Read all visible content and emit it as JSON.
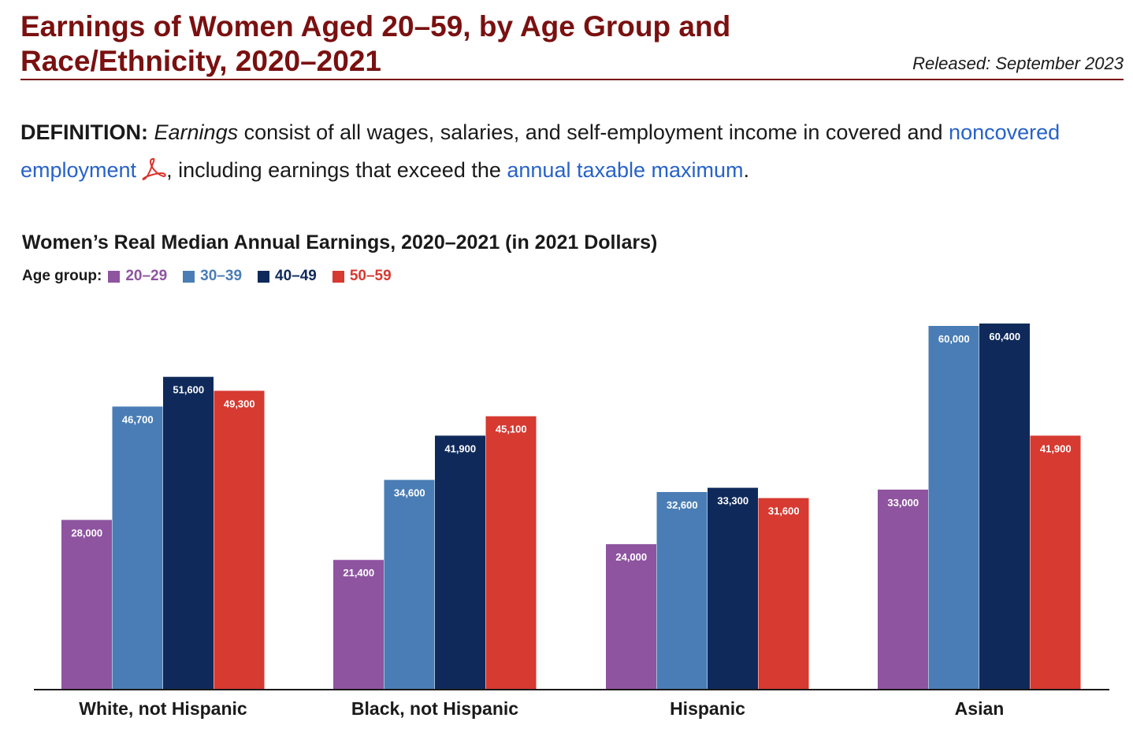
{
  "header": {
    "title": "Earnings of Women Aged 20–59, by Age Group and Race/Ethnicity, 2020–2021",
    "released": "Released: September 2023"
  },
  "definition": {
    "label": "DEFINITION:",
    "term": "Earnings",
    "text_1": " consist of all wages, salaries, and self-employment income in covered and ",
    "link_1": "noncovered employment",
    "text_2": ", including earnings that exceed the ",
    "link_2": "annual taxable maximum",
    "text_3": "."
  },
  "icons": {
    "pdf": "pdf-icon"
  },
  "colors": {
    "title": "#7a1010",
    "link": "#2762c9",
    "pdf_icon": "#d9322b"
  },
  "chart_data": {
    "type": "bar",
    "title": "Women’s Real Median Annual Earnings, 2020–2021 (in 2021 Dollars)",
    "legend_title": "Age group:",
    "legend_position": "top-left",
    "grid": false,
    "categories": [
      "White, not Hispanic",
      "Black, not Hispanic",
      "Hispanic",
      "Asian"
    ],
    "series": [
      {
        "name": "20–29",
        "color": "#8e54a0",
        "values": [
          28000,
          21400,
          24000,
          33000
        ],
        "labels": [
          "28,000",
          "21,400",
          "24,000",
          "33,000"
        ]
      },
      {
        "name": "30–39",
        "color": "#4a7db5",
        "values": [
          46700,
          34600,
          32600,
          60000
        ],
        "labels": [
          "46,700",
          "34,600",
          "32,600",
          "60,000"
        ]
      },
      {
        "name": "40–49",
        "color": "#0f2a5a",
        "values": [
          51600,
          41900,
          33300,
          60400
        ],
        "labels": [
          "51,600",
          "41,900",
          "33,300",
          "60,400"
        ]
      },
      {
        "name": "50–59",
        "color": "#d63a31",
        "values": [
          49300,
          45100,
          31600,
          41900
        ],
        "labels": [
          "49,300",
          "45,100",
          "31,600",
          "41,900"
        ]
      }
    ]
  }
}
